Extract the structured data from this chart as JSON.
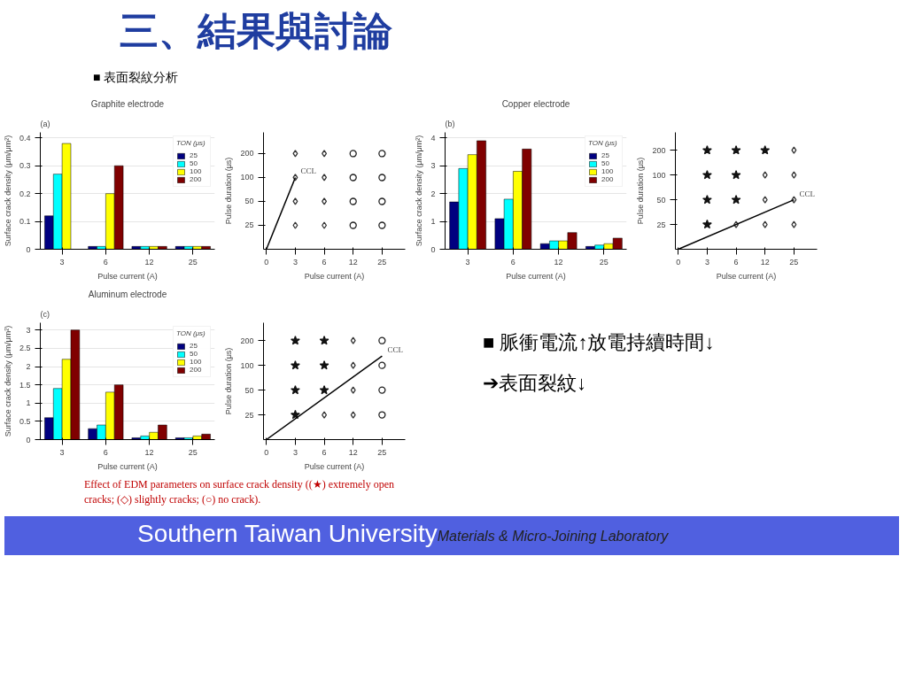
{
  "chart_data": [
    {
      "type": "other",
      "title": "三、結果與討論",
      "annotations": [
        "■ 表面裂紋分析",
        "Effect of EDM parameters on surface crack density ((★) extremely open cracks; (◇) slightly cracks; (○) no crack).",
        "■ 脈衝電流↑放電持續時間↓",
        "➔表面裂紋↓",
        "Southern Taiwan University",
        "Materials & Micro-Joining Laboratory"
      ]
    },
    {
      "type": "bar",
      "title": "Graphite electrode",
      "annotations": [
        "(a)"
      ],
      "xlabel": "Pulse current (A)",
      "ylabel": "Surface crack density (μm/μm²)",
      "legend_title": "TON (μs)",
      "legend": "top right",
      "categories": [
        "3",
        "6",
        "12",
        "25"
      ],
      "ylim": [
        0,
        0.42
      ],
      "yticks": [
        0,
        0.1,
        0.2,
        0.3,
        0.4
      ],
      "grid": "y",
      "series": [
        {
          "name": "25",
          "color": "#000080",
          "values": [
            0.12,
            0.01,
            0.01,
            0.01
          ]
        },
        {
          "name": "50",
          "color": "#00ffff",
          "values": [
            0.27,
            0.01,
            0.01,
            0.01
          ]
        },
        {
          "name": "100",
          "color": "#ffff00",
          "values": [
            0.38,
            0.2,
            0.01,
            0.01
          ]
        },
        {
          "name": "200",
          "color": "#800000",
          "values": [
            null,
            0.3,
            0.01,
            0.01
          ]
        }
      ]
    },
    {
      "type": "scatter",
      "xlabel": "Pulse current (A)",
      "ylabel": "Pulse duration (μs)",
      "categories": [
        "0",
        "3",
        "6",
        "12",
        "25"
      ],
      "log": "y",
      "ylim": [
        12.5,
        370
      ],
      "yticks": [
        25,
        50,
        100,
        200
      ],
      "annotations": [
        "CCL"
      ],
      "series": [
        {
          "type": "scatter",
          "marker": "diamond",
          "color": "#333333",
          "x": [
            "3",
            "3",
            "3",
            "3",
            "6",
            "6",
            "6",
            "6"
          ],
          "values": [
            25,
            50,
            100,
            200,
            25,
            50,
            100,
            200
          ]
        },
        {
          "type": "scatter",
          "marker": "circle",
          "color": "#222222",
          "x": [
            "12",
            "12",
            "12",
            "12",
            "25",
            "25",
            "25",
            "25"
          ],
          "values": [
            25,
            50,
            100,
            200,
            25,
            50,
            100,
            200
          ]
        },
        {
          "type": "line",
          "color": "#000000",
          "x": [
            "0",
            "3"
          ],
          "values": [
            12.5,
            100
          ]
        }
      ]
    },
    {
      "type": "bar",
      "title": "Copper electrode",
      "annotations": [
        "(b)"
      ],
      "xlabel": "Pulse current (A)",
      "ylabel": "Surface crack density (μm/μm²)",
      "legend_title": "TON (μs)",
      "legend": "top right",
      "categories": [
        "3",
        "6",
        "12",
        "25"
      ],
      "ylim": [
        0,
        4.2
      ],
      "yticks": [
        0,
        1,
        2,
        3,
        4
      ],
      "grid": "y",
      "series": [
        {
          "name": "25",
          "color": "#000080",
          "values": [
            1.7,
            1.1,
            0.2,
            0.1
          ]
        },
        {
          "name": "50",
          "color": "#00ffff",
          "values": [
            2.9,
            1.8,
            0.3,
            0.15
          ]
        },
        {
          "name": "100",
          "color": "#ffff00",
          "values": [
            3.4,
            2.8,
            0.3,
            0.2
          ]
        },
        {
          "name": "200",
          "color": "#800000",
          "values": [
            3.9,
            3.6,
            0.6,
            0.4
          ]
        }
      ]
    },
    {
      "type": "scatter",
      "xlabel": "Pulse current (A)",
      "ylabel": "Pulse duration (μs)",
      "categories": [
        "0",
        "3",
        "6",
        "12",
        "25"
      ],
      "log": "y",
      "ylim": [
        12.5,
        330
      ],
      "yticks": [
        25,
        50,
        100,
        200
      ],
      "annotations": [
        "CCL"
      ],
      "series": [
        {
          "type": "scatter",
          "marker": "star",
          "color": "#111111",
          "x": [
            "3",
            "3",
            "3",
            "3",
            "6",
            "6",
            "6",
            "12"
          ],
          "values": [
            25,
            50,
            100,
            200,
            50,
            100,
            200,
            200
          ]
        },
        {
          "type": "scatter",
          "marker": "diamond",
          "color": "#333333",
          "x": [
            "6",
            "12",
            "12",
            "12",
            "25",
            "25",
            "25",
            "25"
          ],
          "values": [
            25,
            25,
            50,
            100,
            25,
            50,
            100,
            200
          ]
        },
        {
          "type": "line",
          "color": "#000000",
          "x": [
            "0",
            "25"
          ],
          "values": [
            12.5,
            50
          ]
        }
      ]
    },
    {
      "type": "bar",
      "title": "Aluminum electrode",
      "annotations": [
        "(c)"
      ],
      "xlabel": "Pulse current (A)",
      "ylabel": "Surface crack density (μm/μm²)",
      "legend_title": "TON (μs)",
      "legend": "top right",
      "categories": [
        "3",
        "6",
        "12",
        "25"
      ],
      "ylim": [
        0,
        3.2
      ],
      "yticks": [
        0,
        0.5,
        1,
        1.5,
        2,
        2.5,
        3
      ],
      "grid": "y",
      "series": [
        {
          "name": "25",
          "color": "#000080",
          "values": [
            0.6,
            0.3,
            0.05,
            0.05
          ]
        },
        {
          "name": "50",
          "color": "#00ffff",
          "values": [
            1.4,
            0.4,
            0.1,
            0.05
          ]
        },
        {
          "name": "100",
          "color": "#ffff00",
          "values": [
            2.2,
            1.3,
            0.2,
            0.1
          ]
        },
        {
          "name": "200",
          "color": "#800000",
          "values": [
            3.0,
            1.5,
            0.4,
            0.15
          ]
        }
      ]
    },
    {
      "type": "scatter",
      "xlabel": "Pulse current (A)",
      "ylabel": "Pulse duration (μs)",
      "categories": [
        "0",
        "3",
        "6",
        "12",
        "25"
      ],
      "log": "y",
      "ylim": [
        12.5,
        330
      ],
      "yticks": [
        25,
        50,
        100,
        200
      ],
      "annotations": [
        "CCL"
      ],
      "series": [
        {
          "type": "scatter",
          "marker": "star",
          "color": "#111111",
          "x": [
            "3",
            "3",
            "3",
            "3",
            "6",
            "6",
            "6"
          ],
          "values": [
            25,
            50,
            100,
            200,
            50,
            100,
            200
          ]
        },
        {
          "type": "scatter",
          "marker": "diamond",
          "color": "#333333",
          "x": [
            "6",
            "12",
            "12",
            "12",
            "12"
          ],
          "values": [
            25,
            25,
            50,
            100,
            200
          ]
        },
        {
          "type": "scatter",
          "marker": "circle",
          "color": "#222222",
          "x": [
            "25",
            "25",
            "25",
            "25"
          ],
          "values": [
            25,
            50,
            100,
            200
          ]
        },
        {
          "type": "line",
          "color": "#000000",
          "x": [
            "0",
            "25"
          ],
          "values": [
            12.5,
            130
          ]
        }
      ]
    }
  ]
}
